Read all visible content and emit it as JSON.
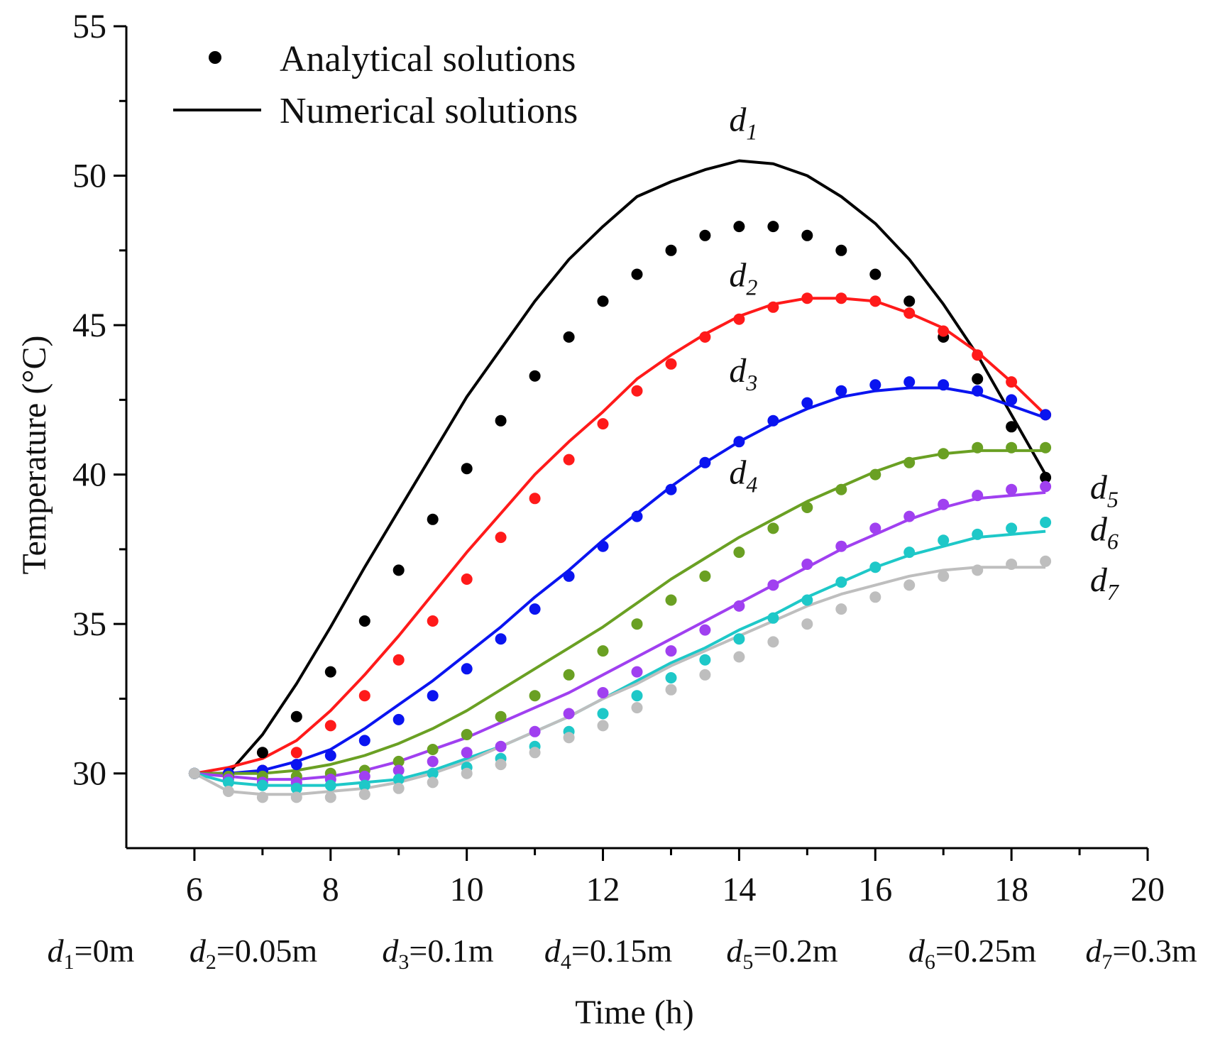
{
  "chart_data": {
    "type": "line+scatter",
    "xlabel": "Time (h)",
    "ylabel": "Temperature (°C)",
    "xlim": [
      5,
      20
    ],
    "ylim": [
      27.5,
      55
    ],
    "xticks": [
      "6",
      "8",
      "10",
      "12",
      "14",
      "16",
      "18",
      "20"
    ],
    "yticks": [
      "30",
      "35",
      "40",
      "45",
      "50",
      "55"
    ],
    "legend": {
      "position": "top-left",
      "entries": [
        {
          "marker": "dot",
          "label": "Analytical solutions"
        },
        {
          "marker": "line",
          "label": "Numerical solutions"
        }
      ]
    },
    "time_points": [
      6,
      6.5,
      7,
      7.5,
      8,
      8.5,
      9,
      9.5,
      10,
      10.5,
      11,
      11.5,
      12,
      12.5,
      13,
      13.5,
      14,
      14.5,
      15,
      15.5,
      16,
      16.5,
      17,
      17.5,
      18,
      18.5
    ],
    "series": [
      {
        "name": "d1",
        "color": "#000000",
        "analytical": [
          30.0,
          29.9,
          30.7,
          31.9,
          33.4,
          35.1,
          36.8,
          38.5,
          40.2,
          41.8,
          43.3,
          44.6,
          45.8,
          46.7,
          47.5,
          48.0,
          48.3,
          48.3,
          48.0,
          47.5,
          46.7,
          45.8,
          44.6,
          43.2,
          41.6,
          39.9
        ],
        "numerical": [
          30.0,
          30.0,
          31.3,
          33.0,
          34.9,
          36.9,
          38.8,
          40.7,
          42.6,
          44.2,
          45.8,
          47.2,
          48.3,
          49.3,
          49.8,
          50.2,
          50.5,
          50.4,
          50.0,
          49.3,
          48.4,
          47.2,
          45.7,
          44.0,
          42.0,
          40.0
        ]
      },
      {
        "name": "d2",
        "color": "#ff1a1a",
        "analytical": [
          30.0,
          30.0,
          30.1,
          30.7,
          31.6,
          32.6,
          33.8,
          35.1,
          36.5,
          37.9,
          39.2,
          40.5,
          41.7,
          42.8,
          43.7,
          44.6,
          45.2,
          45.6,
          45.9,
          45.9,
          45.8,
          45.4,
          44.8,
          44.0,
          43.1,
          42.0
        ],
        "numerical": [
          30.0,
          30.2,
          30.5,
          31.1,
          32.1,
          33.3,
          34.6,
          36.0,
          37.4,
          38.7,
          40.0,
          41.1,
          42.1,
          43.2,
          44.0,
          44.7,
          45.3,
          45.7,
          45.9,
          45.9,
          45.8,
          45.4,
          44.9,
          44.1,
          43.1,
          42.0
        ]
      },
      {
        "name": "d3",
        "color": "#0a14f0",
        "analytical": [
          30.0,
          30.0,
          30.1,
          30.3,
          30.6,
          31.1,
          31.8,
          32.6,
          33.5,
          34.5,
          35.5,
          36.6,
          37.6,
          38.6,
          39.5,
          40.4,
          41.1,
          41.8,
          42.4,
          42.8,
          43.0,
          43.1,
          43.0,
          42.8,
          42.5,
          42.0
        ],
        "numerical": [
          30.0,
          30.0,
          30.1,
          30.4,
          30.8,
          31.5,
          32.3,
          33.1,
          34.0,
          34.9,
          35.9,
          36.8,
          37.8,
          38.7,
          39.6,
          40.4,
          41.1,
          41.7,
          42.2,
          42.6,
          42.8,
          42.9,
          42.9,
          42.7,
          42.3,
          41.9
        ]
      },
      {
        "name": "d4",
        "color": "#6aa023",
        "analytical": [
          30.0,
          29.9,
          29.9,
          29.9,
          30.0,
          30.1,
          30.4,
          30.8,
          31.3,
          31.9,
          32.6,
          33.3,
          34.1,
          35.0,
          35.8,
          36.6,
          37.4,
          38.2,
          38.9,
          39.5,
          40.0,
          40.4,
          40.7,
          40.9,
          40.9,
          40.9
        ],
        "numerical": [
          30.0,
          30.0,
          30.0,
          30.1,
          30.3,
          30.6,
          31.0,
          31.5,
          32.1,
          32.8,
          33.5,
          34.2,
          34.9,
          35.7,
          36.5,
          37.2,
          37.9,
          38.5,
          39.1,
          39.6,
          40.1,
          40.5,
          40.7,
          40.8,
          40.8,
          40.8
        ]
      },
      {
        "name": "d5",
        "color": "#a040f0",
        "analytical": [
          30.0,
          29.8,
          29.7,
          29.7,
          29.8,
          29.9,
          30.1,
          30.4,
          30.7,
          30.9,
          31.4,
          32.0,
          32.7,
          33.4,
          34.1,
          34.8,
          35.6,
          36.3,
          37.0,
          37.6,
          38.2,
          38.6,
          39.0,
          39.3,
          39.5,
          39.6
        ],
        "numerical": [
          30.0,
          29.9,
          29.8,
          29.8,
          29.9,
          30.1,
          30.4,
          30.8,
          31.2,
          31.7,
          32.2,
          32.7,
          33.3,
          33.9,
          34.5,
          35.1,
          35.7,
          36.3,
          36.9,
          37.5,
          38.0,
          38.5,
          38.9,
          39.2,
          39.3,
          39.4
        ]
      },
      {
        "name": "d6",
        "color": "#1ec8c8",
        "analytical": [
          30.0,
          29.7,
          29.6,
          29.5,
          29.6,
          29.6,
          29.8,
          30.0,
          30.2,
          30.5,
          30.9,
          31.4,
          32.0,
          32.6,
          33.2,
          33.8,
          34.5,
          35.2,
          35.8,
          36.4,
          36.9,
          37.4,
          37.8,
          38.0,
          38.2,
          38.4
        ],
        "numerical": [
          30.0,
          29.7,
          29.6,
          29.6,
          29.6,
          29.7,
          29.8,
          30.1,
          30.5,
          30.9,
          31.4,
          31.9,
          32.5,
          33.1,
          33.7,
          34.2,
          34.8,
          35.3,
          35.9,
          36.4,
          36.9,
          37.3,
          37.6,
          37.9,
          38.0,
          38.1
        ]
      },
      {
        "name": "d7",
        "color": "#bebebe",
        "analytical": [
          30.0,
          29.4,
          29.2,
          29.2,
          29.2,
          29.3,
          29.5,
          29.7,
          30.0,
          30.3,
          30.7,
          31.2,
          31.6,
          32.2,
          32.8,
          33.3,
          33.9,
          34.4,
          35.0,
          35.5,
          35.9,
          36.3,
          36.6,
          36.8,
          37.0,
          37.1
        ],
        "numerical": [
          30.0,
          29.4,
          29.3,
          29.3,
          29.4,
          29.5,
          29.7,
          30.0,
          30.4,
          30.9,
          31.4,
          31.9,
          32.5,
          33.0,
          33.6,
          34.1,
          34.6,
          35.1,
          35.6,
          36.0,
          36.3,
          36.6,
          36.8,
          36.9,
          36.9,
          36.9
        ]
      }
    ],
    "curve_labels": [
      {
        "main": "d",
        "sub": "1"
      },
      {
        "main": "d",
        "sub": "2"
      },
      {
        "main": "d",
        "sub": "3"
      },
      {
        "main": "d",
        "sub": "4"
      },
      {
        "main": "d",
        "sub": "5"
      },
      {
        "main": "d",
        "sub": "6"
      },
      {
        "main": "d",
        "sub": "7"
      }
    ],
    "depth_labels": [
      {
        "main": "d",
        "sub": "1",
        "value": "=0m"
      },
      {
        "main": "d",
        "sub": "2",
        "value": "=0.05m"
      },
      {
        "main": "d",
        "sub": "3",
        "value": "=0.1m"
      },
      {
        "main": "d",
        "sub": "4",
        "value": "=0.15m"
      },
      {
        "main": "d",
        "sub": "5",
        "value": "=0.2m"
      },
      {
        "main": "d",
        "sub": "6",
        "value": "=0.25m"
      },
      {
        "main": "d",
        "sub": "7",
        "value": "=0.3m"
      }
    ]
  }
}
